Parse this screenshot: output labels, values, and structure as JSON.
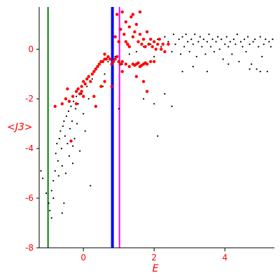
{
  "chart_data": {
    "type": "scatter",
    "xlabel": "E",
    "ylabel": "<J3>",
    "xlim": [
      -1.25,
      5.4
    ],
    "ylim": [
      -8,
      1.7
    ],
    "x_ticks": [
      0,
      2,
      4
    ],
    "y_ticks": [
      0,
      -2,
      -4,
      -6,
      -8
    ],
    "vertical_lines": [
      {
        "x": -1.0,
        "color": "#008000"
      },
      {
        "x": 0.82,
        "color": "#0000ff"
      },
      {
        "x": 1.02,
        "color": "#ff00ff"
      }
    ],
    "series": [
      {
        "color": "#000000",
        "points": [
          [
            -1.2,
            -4.9
          ],
          [
            -1.15,
            -5.2
          ],
          [
            -1.05,
            -5.8
          ],
          [
            -0.98,
            -6.2
          ],
          [
            -0.95,
            -6.5
          ],
          [
            -0.9,
            -5.7
          ],
          [
            -0.85,
            -5.3
          ],
          [
            -0.8,
            -4.9
          ],
          [
            -0.78,
            -4.2
          ],
          [
            -0.75,
            -3.8
          ],
          [
            -0.72,
            -4.5
          ],
          [
            -0.7,
            -5.1
          ],
          [
            -0.68,
            -3.6
          ],
          [
            -0.65,
            -3.3
          ],
          [
            -0.62,
            -4.0
          ],
          [
            -0.6,
            -4.7
          ],
          [
            -0.58,
            -3.1
          ],
          [
            -0.55,
            -2.9
          ],
          [
            -0.52,
            -3.5
          ],
          [
            -0.5,
            -5.0
          ],
          [
            -0.48,
            -2.7
          ],
          [
            -0.45,
            -3.8
          ],
          [
            -0.42,
            -2.5
          ],
          [
            -0.4,
            -4.3
          ],
          [
            -0.38,
            -3.2
          ],
          [
            -0.35,
            -2.3
          ],
          [
            -0.32,
            -2.9
          ],
          [
            -0.3,
            -4.6
          ],
          [
            -0.28,
            -2.1
          ],
          [
            -0.25,
            -3.6
          ],
          [
            -0.22,
            -2.4
          ],
          [
            -0.2,
            -1.9
          ],
          [
            -0.18,
            -3.0
          ],
          [
            -0.15,
            -2.2
          ],
          [
            -0.1,
            -4.1
          ],
          [
            -0.05,
            -1.8
          ],
          [
            0.0,
            -2.6
          ],
          [
            0.05,
            -3.3
          ],
          [
            0.1,
            -1.5
          ],
          [
            0.15,
            -2.0
          ],
          [
            0.2,
            -5.5
          ],
          [
            0.25,
            -1.2
          ],
          [
            0.3,
            -0.9
          ],
          [
            -0.6,
            -6.6
          ],
          [
            -0.9,
            -6.8
          ],
          [
            -0.55,
            -6.2
          ],
          [
            -0.85,
            -6.0
          ],
          [
            -0.3,
            -3.9
          ],
          [
            0.7,
            -0.5
          ],
          [
            0.9,
            -0.3
          ],
          [
            1.1,
            -0.6
          ],
          [
            1.3,
            -0.2
          ],
          [
            1.5,
            -0.1
          ],
          [
            1.7,
            0.1
          ],
          [
            1.9,
            0.2
          ],
          [
            2.0,
            -0.3
          ],
          [
            2.1,
            0.4
          ],
          [
            2.2,
            0.1
          ],
          [
            2.3,
            0.5
          ],
          [
            2.4,
            0.3
          ],
          [
            2.5,
            -0.1
          ],
          [
            2.55,
            0.6
          ],
          [
            2.6,
            0.2
          ],
          [
            2.7,
            0.4
          ],
          [
            2.75,
            -0.2
          ],
          [
            2.8,
            0.5
          ],
          [
            2.85,
            0.1
          ],
          [
            2.9,
            0.6
          ],
          [
            2.95,
            0.3
          ],
          [
            3.0,
            -0.1
          ],
          [
            3.05,
            0.4
          ],
          [
            3.1,
            0.2
          ],
          [
            3.15,
            0.6
          ],
          [
            3.2,
            -0.3
          ],
          [
            3.25,
            0.3
          ],
          [
            3.3,
            0.5
          ],
          [
            3.35,
            0.1
          ],
          [
            3.4,
            0.4
          ],
          [
            3.45,
            -0.2
          ],
          [
            3.5,
            0.3
          ],
          [
            3.55,
            0.6
          ],
          [
            3.6,
            0.1
          ],
          [
            3.65,
            0.4
          ],
          [
            3.7,
            -0.1
          ],
          [
            3.75,
            0.3
          ],
          [
            3.8,
            0.5
          ],
          [
            3.85,
            0.0
          ],
          [
            3.9,
            0.4
          ],
          [
            3.95,
            -0.4
          ],
          [
            4.0,
            0.2
          ],
          [
            4.05,
            0.5
          ],
          [
            4.1,
            0.1
          ],
          [
            4.15,
            0.3
          ],
          [
            4.2,
            -0.2
          ],
          [
            4.25,
            0.4
          ],
          [
            4.3,
            0.2
          ],
          [
            4.35,
            0.6
          ],
          [
            4.4,
            -0.5
          ],
          [
            4.45,
            0.3
          ],
          [
            4.5,
            0.1
          ],
          [
            4.55,
            0.4
          ],
          [
            4.6,
            -0.1
          ],
          [
            4.65,
            0.5
          ],
          [
            4.7,
            0.2
          ],
          [
            4.75,
            -0.6
          ],
          [
            4.8,
            0.3
          ],
          [
            4.85,
            0.4
          ],
          [
            4.9,
            -0.8
          ],
          [
            4.95,
            0.1
          ],
          [
            5.0,
            0.5
          ],
          [
            5.05,
            -0.3
          ],
          [
            5.1,
            0.2
          ],
          [
            5.15,
            0.4
          ],
          [
            5.2,
            -0.9
          ],
          [
            5.25,
            0.3
          ],
          [
            5.3,
            0.1
          ],
          [
            5.35,
            0.4
          ],
          [
            5.0,
            -0.9
          ],
          [
            4.7,
            -0.8
          ],
          [
            3.5,
            -0.9
          ],
          [
            2.8,
            -0.9
          ],
          [
            2.0,
            -2.2
          ],
          [
            1.7,
            -2.0
          ],
          [
            2.1,
            -3.5
          ],
          [
            2.5,
            -2.3
          ],
          [
            1.0,
            -2.4
          ],
          [
            0.6,
            -1.0
          ],
          [
            0.55,
            -1.5
          ],
          [
            2.3,
            -1.8
          ],
          [
            3.1,
            -0.7
          ],
          [
            4.1,
            -0.6
          ]
        ]
      },
      {
        "color": "#ff0000",
        "points": [
          [
            -0.8,
            -2.3
          ],
          [
            -0.6,
            -2.2
          ],
          [
            -0.5,
            -2.0
          ],
          [
            -0.4,
            -2.1
          ],
          [
            -0.35,
            -3.7
          ],
          [
            -0.3,
            -1.9
          ],
          [
            -0.2,
            -1.7
          ],
          [
            -0.15,
            -1.6
          ],
          [
            -0.1,
            -1.8
          ],
          [
            -0.05,
            -1.5
          ],
          [
            -0.05,
            -1.7
          ],
          [
            0.0,
            -1.3
          ],
          [
            0.0,
            -1.9
          ],
          [
            0.05,
            -1.4
          ],
          [
            0.1,
            -1.2
          ],
          [
            0.15,
            -1.1
          ],
          [
            0.2,
            -1.3
          ],
          [
            0.25,
            -1.0
          ],
          [
            0.3,
            -0.9
          ],
          [
            0.3,
            -1.9
          ],
          [
            0.35,
            -2.3
          ],
          [
            0.35,
            -0.8
          ],
          [
            0.4,
            -0.7
          ],
          [
            0.45,
            -0.6
          ],
          [
            0.5,
            -0.5
          ],
          [
            0.5,
            -1.5
          ],
          [
            0.55,
            -0.5
          ],
          [
            0.6,
            -0.4
          ],
          [
            0.6,
            -0.2
          ],
          [
            0.65,
            -0.4
          ],
          [
            0.7,
            -0.3
          ],
          [
            0.75,
            -0.4
          ],
          [
            0.8,
            -0.6
          ],
          [
            0.85,
            -0.5
          ],
          [
            0.9,
            -0.4
          ],
          [
            0.95,
            -0.3
          ],
          [
            1.0,
            -0.5
          ],
          [
            1.05,
            -0.6
          ],
          [
            1.1,
            -0.5
          ],
          [
            1.2,
            -0.6
          ],
          [
            1.3,
            -0.7
          ],
          [
            1.4,
            -0.6
          ],
          [
            1.5,
            -0.6
          ],
          [
            1.6,
            -0.7
          ],
          [
            1.7,
            -0.6
          ],
          [
            1.8,
            -0.6
          ],
          [
            1.9,
            -0.5
          ],
          [
            2.0,
            -0.5
          ],
          [
            1.55,
            -0.55
          ],
          [
            1.65,
            -0.65
          ],
          [
            1.45,
            -0.65
          ],
          [
            1.75,
            -0.55
          ],
          [
            1.0,
            0.3
          ],
          [
            1.05,
            0.8
          ],
          [
            1.1,
            1.5
          ],
          [
            1.15,
            0.6
          ],
          [
            1.2,
            1.1
          ],
          [
            1.25,
            0.2
          ],
          [
            1.3,
            0.9
          ],
          [
            1.35,
            1.3
          ],
          [
            1.4,
            0.5
          ],
          [
            1.45,
            0.7
          ],
          [
            1.5,
            1.0
          ],
          [
            1.55,
            0.3
          ],
          [
            1.6,
            0.6
          ],
          [
            1.65,
            0.2
          ],
          [
            1.7,
            0.4
          ],
          [
            1.75,
            0.1
          ],
          [
            1.8,
            0.7
          ],
          [
            1.85,
            0.2
          ],
          [
            1.9,
            0.4
          ],
          [
            1.95,
            0.1
          ],
          [
            2.0,
            0.3
          ],
          [
            2.05,
            0.0
          ],
          [
            2.1,
            0.2
          ],
          [
            2.15,
            0.4
          ],
          [
            2.2,
            0.0
          ],
          [
            2.25,
            0.2
          ],
          [
            2.3,
            -0.1
          ],
          [
            2.4,
            0.2
          ],
          [
            1.2,
            0.3
          ],
          [
            1.3,
            0.1
          ],
          [
            1.4,
            1.4
          ],
          [
            1.6,
            1.5
          ],
          [
            0.95,
            1.4
          ],
          [
            0.9,
            0.5
          ],
          [
            1.5,
            -1.1
          ],
          [
            1.7,
            -1.3
          ],
          [
            1.8,
            -1.7
          ],
          [
            0.8,
            -1.5
          ],
          [
            1.1,
            -0.9
          ],
          [
            0.6,
            -1.3
          ],
          [
            -0.2,
            -2.2
          ],
          [
            -0.45,
            -1.6
          ]
        ]
      }
    ]
  }
}
